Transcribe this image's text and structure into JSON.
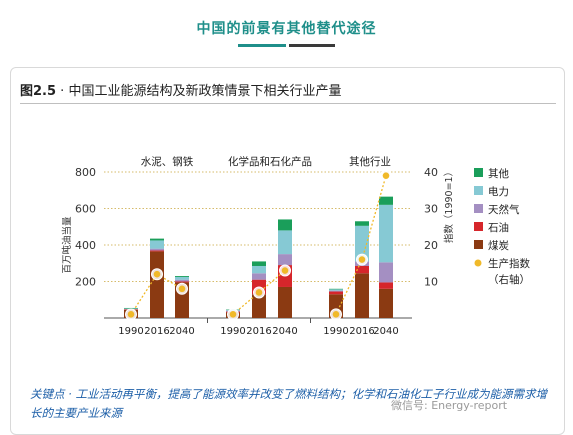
{
  "header": {
    "title": "中国的前景有其他替代途径"
  },
  "figure": {
    "label": "图2.5",
    "separator": "·",
    "title": "中国工业能源结构及新政策情景下相关行业产量"
  },
  "caption": "关键点 · 工业活动再平衡，提高了能源效率并改变了燃料结构；化学和石油化工子行业成为能源需求增长的主要产业来源",
  "watermark": "微信号: Energy-report",
  "chart_data": {
    "type": "bar",
    "stacked": true,
    "ylabel": "百万吨油当量",
    "ylabel2": "指数（1990=1）",
    "ylim": [
      0,
      800
    ],
    "ylim2": [
      0,
      40
    ],
    "yticks": [
      200,
      400,
      600,
      800
    ],
    "yticks2": [
      10,
      20,
      30,
      40
    ],
    "groups": [
      "水泥、钢铁",
      "化学品和石化产品",
      "其他行业"
    ],
    "categories": [
      "1990",
      "2016",
      "2040"
    ],
    "colors": {
      "其他": "#1a9e5a",
      "电力": "#86c9d4",
      "天然气": "#a48fc2",
      "石油": "#d6262b",
      "煤炭": "#8b3a12",
      "生产指数": "#f0b929"
    },
    "series": [
      {
        "name": "煤炭",
        "values": [
          [
            45,
            365,
            195
          ],
          [
            30,
            130,
            170
          ],
          [
            130,
            245,
            160
          ]
        ]
      },
      {
        "name": "石油",
        "values": [
          [
            3,
            5,
            5
          ],
          [
            5,
            80,
            120
          ],
          [
            15,
            40,
            35
          ]
        ]
      },
      {
        "name": "天然气",
        "values": [
          [
            2,
            10,
            10
          ],
          [
            5,
            35,
            60
          ],
          [
            5,
            25,
            110
          ]
        ]
      },
      {
        "name": "电力",
        "values": [
          [
            2,
            45,
            15
          ],
          [
            5,
            40,
            130
          ],
          [
            7,
            195,
            315
          ]
        ]
      },
      {
        "name": "其他",
        "values": [
          [
            3,
            10,
            5
          ],
          [
            2,
            25,
            60
          ],
          [
            3,
            25,
            45
          ]
        ]
      }
    ],
    "production_index": {
      "name": "生产指数",
      "axis_note": "（右轴）",
      "values": [
        [
          1,
          12,
          8
        ],
        [
          1,
          7,
          13
        ],
        [
          1,
          16,
          39
        ]
      ]
    },
    "legend": {
      "position": "right",
      "items": [
        "其他",
        "电力",
        "天然气",
        "石油",
        "煤炭",
        "生产指数"
      ]
    },
    "grid": "dotted"
  }
}
